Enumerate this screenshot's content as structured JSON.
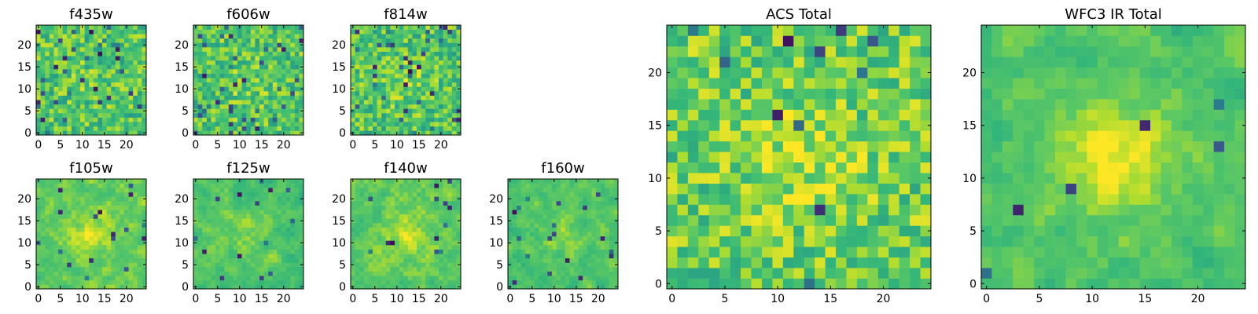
{
  "figure": {
    "colormap": "viridis",
    "cells_per_side": 25
  },
  "chart_data": [
    {
      "type": "heatmap",
      "title": "f435w",
      "x_ticks": [
        "0",
        "5",
        "10",
        "15",
        "20"
      ],
      "y_ticks": [
        "0",
        "5",
        "10",
        "15",
        "20"
      ],
      "xlim": [
        0,
        25
      ],
      "ylim": [
        0,
        25
      ],
      "grid": false,
      "seed": 11,
      "blur": 0,
      "bias": 0.0,
      "center_boost": 0.05,
      "low_spots": 0.06
    },
    {
      "type": "heatmap",
      "title": "f606w",
      "x_ticks": [
        "0",
        "5",
        "10",
        "15",
        "20"
      ],
      "y_ticks": [
        "0",
        "5",
        "10",
        "15",
        "20"
      ],
      "xlim": [
        0,
        25
      ],
      "ylim": [
        0,
        25
      ],
      "grid": false,
      "seed": 23,
      "blur": 0,
      "bias": 0.0,
      "center_boost": 0.08,
      "low_spots": 0.05
    },
    {
      "type": "heatmap",
      "title": "f814w",
      "x_ticks": [
        "0",
        "5",
        "10",
        "15",
        "20"
      ],
      "y_ticks": [
        "0",
        "5",
        "10",
        "15",
        "20"
      ],
      "xlim": [
        0,
        25
      ],
      "ylim": [
        0,
        25
      ],
      "grid": false,
      "seed": 37,
      "blur": 0,
      "bias": 0.0,
      "center_boost": 0.1,
      "low_spots": 0.06
    },
    {
      "type": "heatmap",
      "title": "f105w",
      "x_ticks": [
        "0",
        "5",
        "10",
        "15",
        "20"
      ],
      "y_ticks": [
        "0",
        "5",
        "10",
        "15",
        "20"
      ],
      "xlim": [
        0,
        25
      ],
      "ylim": [
        0,
        25
      ],
      "grid": false,
      "seed": 41,
      "blur": 1,
      "bias": 0.05,
      "center_boost": 0.25,
      "low_spots": 0.02
    },
    {
      "type": "heatmap",
      "title": "f125w",
      "x_ticks": [
        "0",
        "5",
        "10",
        "15",
        "20"
      ],
      "y_ticks": [
        "0",
        "5",
        "10",
        "15",
        "20"
      ],
      "xlim": [
        0,
        25
      ],
      "ylim": [
        0,
        25
      ],
      "grid": false,
      "seed": 53,
      "blur": 1,
      "bias": 0.0,
      "center_boost": 0.12,
      "low_spots": 0.03
    },
    {
      "type": "heatmap",
      "title": "f140w",
      "x_ticks": [
        "0",
        "5",
        "10",
        "15",
        "20"
      ],
      "y_ticks": [
        "0",
        "5",
        "10",
        "15",
        "20"
      ],
      "xlim": [
        0,
        25
      ],
      "ylim": [
        0,
        25
      ],
      "grid": false,
      "seed": 67,
      "blur": 1,
      "bias": 0.05,
      "center_boost": 0.2,
      "low_spots": 0.02
    },
    {
      "type": "heatmap",
      "title": "f160w",
      "x_ticks": [
        "0",
        "5",
        "10",
        "15",
        "20"
      ],
      "y_ticks": [
        "0",
        "5",
        "10",
        "15",
        "20"
      ],
      "xlim": [
        0,
        25
      ],
      "ylim": [
        0,
        25
      ],
      "grid": false,
      "seed": 79,
      "blur": 1,
      "bias": 0.0,
      "center_boost": 0.15,
      "low_spots": 0.04
    },
    {
      "type": "heatmap",
      "title": "ACS Total",
      "x_ticks": [
        "0",
        "5",
        "10",
        "15",
        "20"
      ],
      "y_ticks": [
        "0",
        "5",
        "10",
        "15",
        "20"
      ],
      "xlim": [
        0,
        25
      ],
      "ylim": [
        0,
        25
      ],
      "grid": false,
      "seed": 97,
      "blur": 0,
      "bias": 0.05,
      "center_boost": 0.18,
      "low_spots": 0.025
    },
    {
      "type": "heatmap",
      "title": "WFC3 IR Total",
      "x_ticks": [
        "0",
        "5",
        "10",
        "15",
        "20"
      ],
      "y_ticks": [
        "0",
        "5",
        "10",
        "15",
        "20"
      ],
      "xlim": [
        0,
        25
      ],
      "ylim": [
        0,
        25
      ],
      "grid": false,
      "seed": 113,
      "blur": 1,
      "bias": 0.0,
      "center_boost": 0.35,
      "low_spots": 0.015
    }
  ]
}
